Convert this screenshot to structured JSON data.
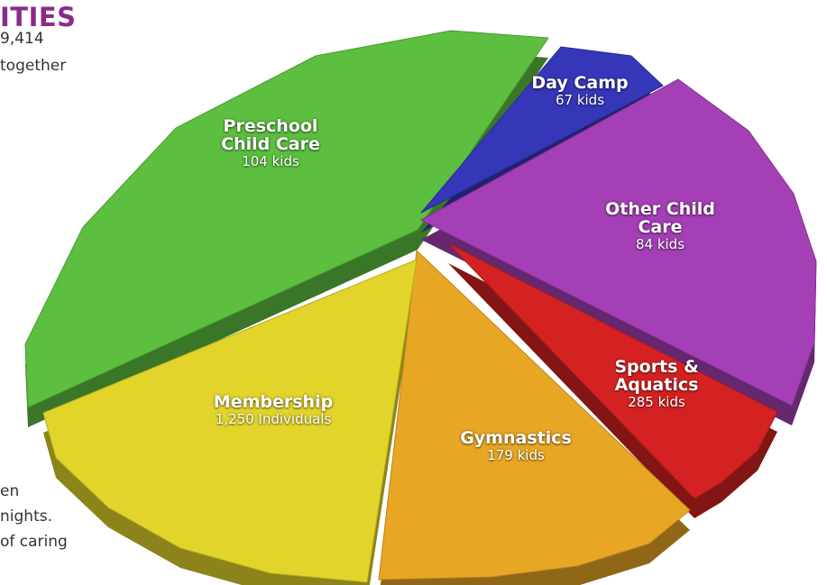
{
  "page": {
    "heading": "ITIES",
    "left_text_top": [
      "9,414",
      "together"
    ],
    "left_text_bottom": [
      "en",
      "nights.",
      "of caring"
    ]
  },
  "chart_data": {
    "type": "pie",
    "title": "",
    "slices": [
      {
        "name": "Preschool Child Care",
        "label_lines": [
          "Preschool",
          "Child Care"
        ],
        "value_text": "104 kids",
        "color": "#5cbf3f"
      },
      {
        "name": "Day Camp",
        "label_lines": [
          "Day Camp"
        ],
        "value_text": "67 kids",
        "color": "#3636b8"
      },
      {
        "name": "Other Child Care",
        "label_lines": [
          "Other Child",
          "Care"
        ],
        "value_text": "84 kids",
        "color": "#a43fb5"
      },
      {
        "name": "Sports & Aquatics",
        "label_lines": [
          "Sports &",
          "Aquatics"
        ],
        "value_text": "285 kids",
        "color": "#d42222"
      },
      {
        "name": "Gymnastics",
        "label_lines": [
          "Gymnastics"
        ],
        "value_text": "179 kids",
        "color": "#e8a625"
      },
      {
        "name": "Membership",
        "label_lines": [
          "Membership"
        ],
        "value_text": "1,250 Individuals",
        "color": "#e2d42a"
      }
    ]
  }
}
